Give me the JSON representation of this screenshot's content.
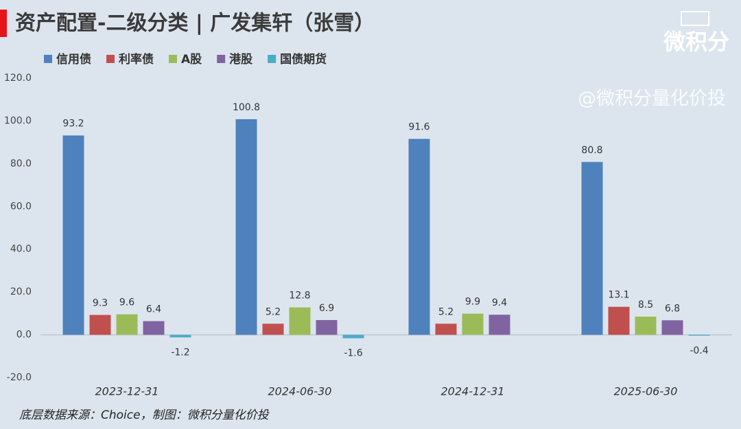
{
  "chart_data": {
    "type": "bar",
    "title": "资产配置-二级分类 | 广发集轩（张雪）",
    "watermark": "@微积分量化价投",
    "logo": "微积分",
    "source": "底层数据来源：Choice，制图：微积分量化价投",
    "categories": [
      "2023-12-31",
      "2024-06-30",
      "2024-12-31",
      "2025-06-30"
    ],
    "series": [
      {
        "name": "信用债",
        "color": "#4f81bd",
        "values": [
          93.2,
          100.8,
          91.6,
          80.8
        ]
      },
      {
        "name": "利率债",
        "color": "#c0504d",
        "values": [
          9.3,
          5.2,
          5.2,
          13.1
        ]
      },
      {
        "name": "A股",
        "color": "#9bbb59",
        "values": [
          9.6,
          12.8,
          9.9,
          8.5
        ]
      },
      {
        "name": "港股",
        "color": "#8064a2",
        "values": [
          6.4,
          6.9,
          9.4,
          6.8
        ]
      },
      {
        "name": "国债期货",
        "color": "#4bacc6",
        "values": [
          -1.2,
          -1.6,
          null,
          -0.4
        ]
      }
    ],
    "ylim": [
      -20,
      120
    ],
    "yticks": [
      {
        "value": -20,
        "label": "-20.0"
      },
      {
        "value": 0,
        "label": "0.0"
      },
      {
        "value": 20,
        "label": "20.0"
      },
      {
        "value": 40,
        "label": "40.0"
      },
      {
        "value": 60,
        "label": "60.0"
      },
      {
        "value": 80,
        "label": "80.0"
      },
      {
        "value": 100,
        "label": "100.0"
      },
      {
        "value": 120,
        "label": "120.0"
      }
    ],
    "legend": "top-left"
  }
}
